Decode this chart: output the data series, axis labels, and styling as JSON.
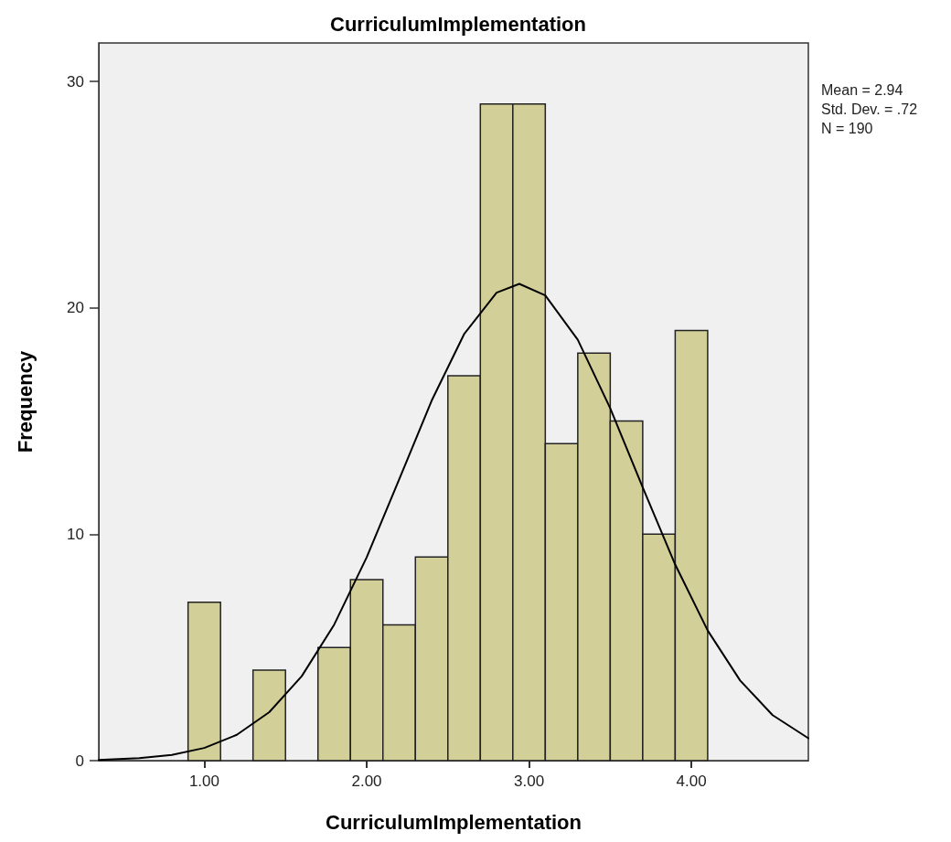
{
  "chart_data": {
    "type": "histogram",
    "title": "CurriculumImplementation",
    "xlabel": "CurriculumImplementation",
    "ylabel": "Frequency",
    "bins": [
      0.9,
      1.1,
      1.3,
      1.5,
      1.7,
      1.9,
      2.1,
      2.3,
      2.5,
      2.7,
      2.9,
      3.1,
      3.3,
      3.5,
      3.7,
      3.9,
      4.1
    ],
    "values": [
      7,
      0,
      4,
      0,
      5,
      8,
      6,
      9,
      17,
      29,
      29,
      14,
      18,
      15,
      10,
      19
    ],
    "color": "#d3cf98",
    "series": [
      {
        "type": "line",
        "color": "#000000",
        "x": [
          0.35,
          0.6,
          0.8,
          1.0,
          1.2,
          1.4,
          1.6,
          1.8,
          2.0,
          2.2,
          2.4,
          2.6,
          2.8,
          2.94,
          3.1,
          3.3,
          3.5,
          3.7,
          3.9,
          4.1,
          4.3,
          4.5,
          4.72
        ],
        "values": [
          0.03,
          0.11,
          0.25,
          0.56,
          1.14,
          2.14,
          3.73,
          6.01,
          8.98,
          12.42,
          15.9,
          18.84,
          20.67,
          21.06,
          20.55,
          18.59,
          15.56,
          12.07,
          8.66,
          5.75,
          3.54,
          2.01,
          0.99
        ]
      }
    ],
    "xlim": [
      0.35,
      4.72
    ],
    "ylim": [
      0,
      31.7
    ],
    "xticks": [
      {
        "value": 1,
        "label": "1.00"
      },
      {
        "value": 2,
        "label": "2.00"
      },
      {
        "value": 3,
        "label": "3.00"
      },
      {
        "value": 4,
        "label": "4.00"
      }
    ],
    "yticks": [
      0,
      10,
      20,
      30
    ],
    "annotations": [
      "Mean = 2.94",
      "Std. Dev. = .72",
      "N = 190"
    ]
  }
}
